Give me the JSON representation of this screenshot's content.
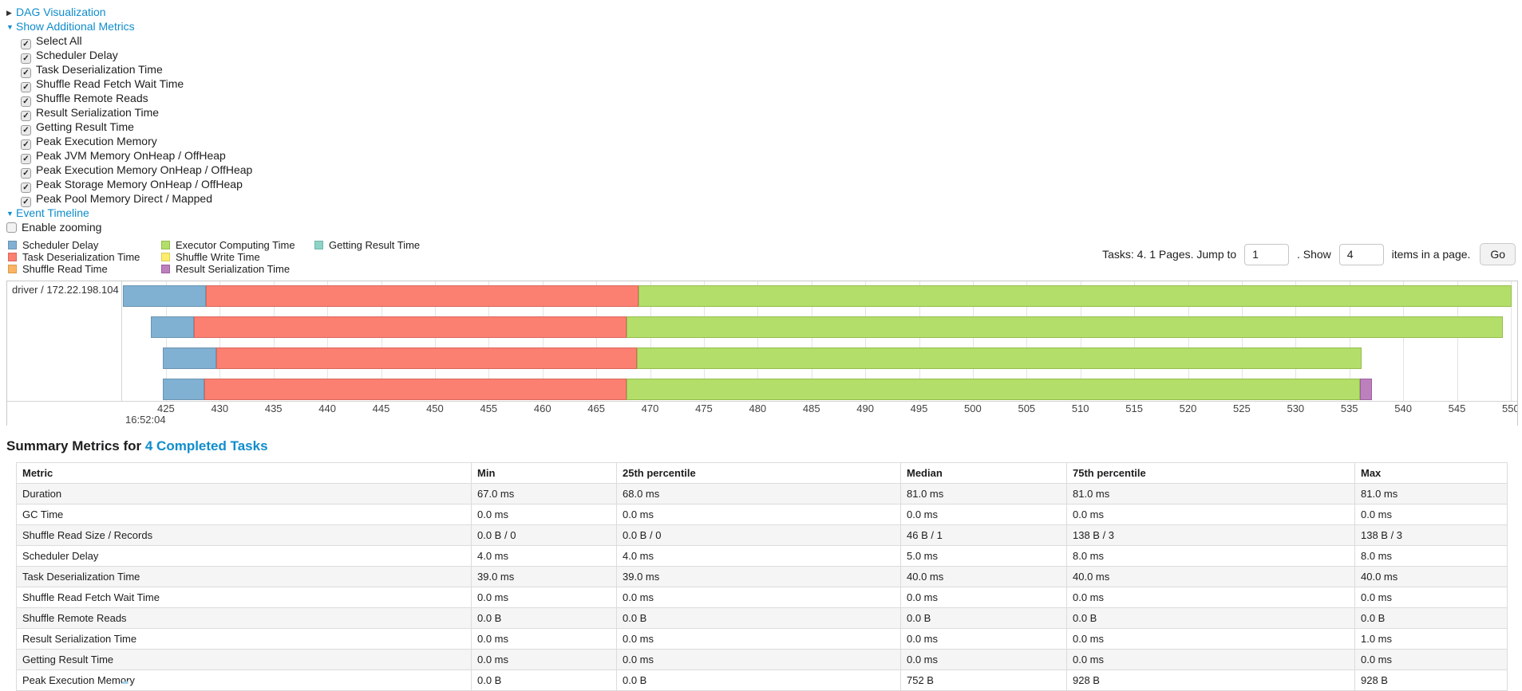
{
  "toggles": {
    "dag": {
      "label": "DAG Visualization"
    },
    "metrics": {
      "label": "Show Additional Metrics"
    },
    "timeline": {
      "label": "Event Timeline"
    }
  },
  "metric_checkboxes": [
    {
      "label": "Select All",
      "checked": true
    },
    {
      "label": "Scheduler Delay",
      "checked": true
    },
    {
      "label": "Task Deserialization Time",
      "checked": true
    },
    {
      "label": "Shuffle Read Fetch Wait Time",
      "checked": true
    },
    {
      "label": "Shuffle Remote Reads",
      "checked": true
    },
    {
      "label": "Result Serialization Time",
      "checked": true
    },
    {
      "label": "Getting Result Time",
      "checked": true
    },
    {
      "label": "Peak Execution Memory",
      "checked": true
    },
    {
      "label": "Peak JVM Memory OnHeap / OffHeap",
      "checked": true
    },
    {
      "label": "Peak Execution Memory OnHeap / OffHeap",
      "checked": true
    },
    {
      "label": "Peak Storage Memory OnHeap / OffHeap",
      "checked": true
    },
    {
      "label": "Peak Pool Memory Direct / Mapped",
      "checked": true
    }
  ],
  "enable_zooming": {
    "label": "Enable zooming",
    "checked": false
  },
  "pagination": {
    "tasks_text": "Tasks: 4. 1 Pages. Jump to",
    "jump_value": "1",
    "show_label": ". Show",
    "show_value": "4",
    "items_label": "items in a page.",
    "go_label": "Go"
  },
  "chart_data": {
    "type": "timeline",
    "title": "Event Timeline",
    "row_label": "driver / 172.22.198.104",
    "axis": {
      "min": 421.0,
      "max": 550.6,
      "tick_start": 425,
      "tick_step": 5,
      "tick_end": 550,
      "unit": "ms",
      "major_time_label": "16:52:04"
    },
    "legend": [
      {
        "key": "scheduler_delay",
        "label": "Scheduler Delay",
        "color": "#80B1D3",
        "stroke": "#6B94B0",
        "column": 0
      },
      {
        "key": "task_deserialization",
        "label": "Task Deserialization Time",
        "color": "#FB8072",
        "stroke": "#D9675C",
        "column": 0
      },
      {
        "key": "shuffle_read",
        "label": "Shuffle Read Time",
        "color": "#FDB462",
        "stroke": "#D99A50",
        "column": 0
      },
      {
        "key": "executor_computing",
        "label": "Executor Computing Time",
        "color": "#B3DE69",
        "stroke": "#94BD4E",
        "column": 1
      },
      {
        "key": "shuffle_write",
        "label": "Shuffle Write Time",
        "color": "#FFED6F",
        "stroke": "#DECB55",
        "column": 1
      },
      {
        "key": "result_serialization",
        "label": "Result Serialization Time",
        "color": "#BC80BD",
        "stroke": "#9C5FA0",
        "column": 1
      },
      {
        "key": "getting_result",
        "label": "Getting Result Time",
        "color": "#8DD3C7",
        "stroke": "#70B5A9",
        "column": 2
      }
    ],
    "tasks": [
      {
        "segments": [
          {
            "key": "scheduler_delay",
            "start": 421.0,
            "end": 428.7
          },
          {
            "key": "task_deserialization",
            "start": 428.7,
            "end": 468.9
          },
          {
            "key": "executor_computing",
            "start": 468.9,
            "end": 550.1
          }
        ]
      },
      {
        "segments": [
          {
            "key": "scheduler_delay",
            "start": 423.6,
            "end": 427.6
          },
          {
            "key": "task_deserialization",
            "start": 427.6,
            "end": 467.8
          },
          {
            "key": "executor_computing",
            "start": 467.8,
            "end": 549.3
          }
        ]
      },
      {
        "segments": [
          {
            "key": "scheduler_delay",
            "start": 424.7,
            "end": 429.7
          },
          {
            "key": "task_deserialization",
            "start": 429.7,
            "end": 468.8
          },
          {
            "key": "executor_computing",
            "start": 468.8,
            "end": 536.1
          }
        ]
      },
      {
        "segments": [
          {
            "key": "scheduler_delay",
            "start": 424.7,
            "end": 428.6
          },
          {
            "key": "task_deserialization",
            "start": 428.6,
            "end": 467.8
          },
          {
            "key": "executor_computing",
            "start": 467.8,
            "end": 536.0
          },
          {
            "key": "result_serialization",
            "start": 536.0,
            "end": 537.1
          }
        ]
      }
    ]
  },
  "summary": {
    "title_prefix": "Summary Metrics for",
    "title_link": "4 Completed Tasks",
    "table": {
      "headers": [
        "Metric",
        "Min",
        "25th percentile",
        "Median",
        "75th percentile",
        "Max"
      ],
      "rows": [
        [
          "Duration",
          "67.0 ms",
          "68.0 ms",
          "81.0 ms",
          "81.0 ms",
          "81.0 ms"
        ],
        [
          "GC Time",
          "0.0 ms",
          "0.0 ms",
          "0.0 ms",
          "0.0 ms",
          "0.0 ms"
        ],
        [
          "Shuffle Read Size / Records",
          "0.0 B / 0",
          "0.0 B / 0",
          "46 B / 1",
          "138 B / 3",
          "138 B / 3"
        ],
        [
          "Scheduler Delay",
          "4.0 ms",
          "4.0 ms",
          "5.0 ms",
          "8.0 ms",
          "8.0 ms"
        ],
        [
          "Task Deserialization Time",
          "39.0 ms",
          "39.0 ms",
          "40.0 ms",
          "40.0 ms",
          "40.0 ms"
        ],
        [
          "Shuffle Read Fetch Wait Time",
          "0.0 ms",
          "0.0 ms",
          "0.0 ms",
          "0.0 ms",
          "0.0 ms"
        ],
        [
          "Shuffle Remote Reads",
          "0.0 B",
          "0.0 B",
          "0.0 B",
          "0.0 B",
          "0.0 B"
        ],
        [
          "Result Serialization Time",
          "0.0 ms",
          "0.0 ms",
          "0.0 ms",
          "0.0 ms",
          "1.0 ms"
        ],
        [
          "Getting Result Time",
          "0.0 ms",
          "0.0 ms",
          "0.0 ms",
          "0.0 ms",
          "0.0 ms"
        ],
        [
          "Peak Execution Memory",
          "0.0 B",
          "0.0 B",
          "752 B",
          "928 B",
          "928 B"
        ]
      ]
    }
  },
  "colors": {
    "link": "#0f8dcc",
    "chart_border": "#c9c9c9",
    "table_border": "#dcdcdc",
    "shaded_row": "#f5f5f5"
  }
}
